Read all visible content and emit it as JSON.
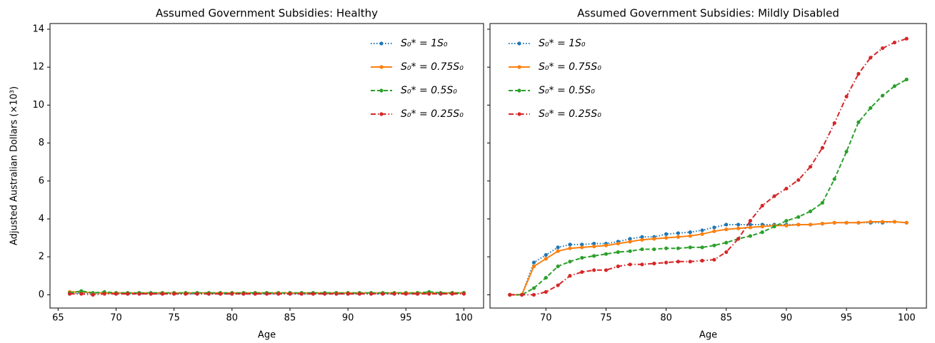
{
  "chart_data": [
    {
      "type": "line",
      "title": "Assumed Government Subsidies: Healthy",
      "xlabel": "Age",
      "ylabel": "Adjusted Australian Dollars (×10³)",
      "x": [
        66,
        67,
        68,
        69,
        70,
        71,
        72,
        73,
        74,
        75,
        76,
        77,
        78,
        79,
        80,
        81,
        82,
        83,
        84,
        85,
        86,
        87,
        88,
        89,
        90,
        91,
        92,
        93,
        94,
        95,
        96,
        97,
        98,
        99,
        100
      ],
      "xlim": [
        64.3,
        101.7
      ],
      "xticks": [
        65,
        70,
        75,
        80,
        85,
        90,
        95,
        100
      ],
      "ylim": [
        -0.7,
        14.3
      ],
      "yticks": [
        0,
        2,
        4,
        6,
        8,
        10,
        12,
        14
      ],
      "show_ytick_labels": true,
      "legend": "upper right",
      "series": [
        {
          "name": "S₀* =  1S₀",
          "color": "#1f77b4",
          "linestyle": "dotted",
          "values": [
            0.05,
            0.1,
            0.05,
            0.1,
            0.05,
            0.05,
            0.05,
            0.05,
            0.05,
            0.05,
            0.05,
            0.05,
            0.05,
            0.05,
            0.05,
            0.05,
            0.05,
            0.05,
            0.05,
            0.05,
            0.05,
            0.05,
            0.05,
            0.05,
            0.05,
            0.05,
            0.05,
            0.05,
            0.05,
            0.05,
            0.05,
            0.1,
            0.05,
            0.1,
            0.1
          ]
        },
        {
          "name": "S₀* =  0.75S₀",
          "color": "#ff7f0e",
          "linestyle": "solid",
          "values": [
            0.15,
            0.15,
            0.1,
            0.1,
            0.1,
            0.1,
            0.1,
            0.1,
            0.1,
            0.1,
            0.1,
            0.1,
            0.1,
            0.1,
            0.1,
            0.1,
            0.1,
            0.1,
            0.1,
            0.1,
            0.1,
            0.1,
            0.1,
            0.1,
            0.1,
            0.1,
            0.1,
            0.1,
            0.1,
            0.1,
            0.1,
            0.1,
            0.1,
            0.1,
            0.1
          ]
        },
        {
          "name": "S₀* =  0.5S₀",
          "color": "#2ca02c",
          "linestyle": "dashed",
          "values": [
            0.1,
            0.2,
            0.1,
            0.15,
            0.1,
            0.1,
            0.1,
            0.1,
            0.1,
            0.1,
            0.1,
            0.1,
            0.1,
            0.1,
            0.1,
            0.1,
            0.1,
            0.1,
            0.1,
            0.1,
            0.1,
            0.1,
            0.1,
            0.1,
            0.1,
            0.1,
            0.1,
            0.1,
            0.1,
            0.1,
            0.1,
            0.15,
            0.1,
            0.1,
            0.1
          ]
        },
        {
          "name": "S₀* =  0.25S₀",
          "color": "#d62728",
          "linestyle": "dashdot",
          "values": [
            0.05,
            0.05,
            0.0,
            0.05,
            0.05,
            0.05,
            0.05,
            0.05,
            0.05,
            0.05,
            0.05,
            0.05,
            0.05,
            0.05,
            0.05,
            0.05,
            0.05,
            0.05,
            0.05,
            0.05,
            0.05,
            0.05,
            0.05,
            0.05,
            0.05,
            0.05,
            0.05,
            0.05,
            0.05,
            0.05,
            0.05,
            0.05,
            0.05,
            0.05,
            0.05
          ]
        }
      ]
    },
    {
      "type": "line",
      "title": "Assumed Government Subsidies: Mildly Disabled",
      "xlabel": "Age",
      "x": [
        67,
        68,
        69,
        70,
        71,
        72,
        73,
        74,
        75,
        76,
        77,
        78,
        79,
        80,
        81,
        82,
        83,
        84,
        85,
        86,
        87,
        88,
        89,
        90,
        91,
        92,
        93,
        94,
        95,
        96,
        97,
        98,
        99,
        100
      ],
      "xlim": [
        65.35,
        101.65
      ],
      "xticks": [
        70,
        75,
        80,
        85,
        90,
        95,
        100
      ],
      "ylim": [
        -0.7,
        14.3
      ],
      "yticks": [
        0,
        2,
        4,
        6,
        8,
        10,
        12,
        14
      ],
      "show_ytick_labels": false,
      "legend": "upper left",
      "series": [
        {
          "name": "S₀* = 1S₀",
          "color": "#1f77b4",
          "linestyle": "dotted",
          "values": [
            0,
            0,
            1.7,
            2.1,
            2.5,
            2.65,
            2.65,
            2.7,
            2.7,
            2.8,
            2.95,
            3.05,
            3.05,
            3.2,
            3.25,
            3.3,
            3.4,
            3.55,
            3.7,
            3.7,
            3.7,
            3.7,
            3.7,
            3.7,
            3.7,
            3.7,
            3.75,
            3.8,
            3.8,
            3.8,
            3.8,
            3.8,
            3.85,
            3.8
          ]
        },
        {
          "name": "S₀* = 0.75S₀",
          "color": "#ff7f0e",
          "linestyle": "solid",
          "values": [
            0,
            0,
            1.5,
            1.9,
            2.3,
            2.45,
            2.5,
            2.55,
            2.6,
            2.7,
            2.8,
            2.9,
            2.95,
            3.0,
            3.05,
            3.1,
            3.2,
            3.35,
            3.45,
            3.5,
            3.55,
            3.6,
            3.65,
            3.65,
            3.7,
            3.7,
            3.75,
            3.8,
            3.8,
            3.8,
            3.85,
            3.85,
            3.85,
            3.8
          ]
        },
        {
          "name": "S₀* = 0.5S₀",
          "color": "#2ca02c",
          "linestyle": "dashed",
          "values": [
            0,
            0,
            0.35,
            0.9,
            1.5,
            1.75,
            1.95,
            2.05,
            2.15,
            2.25,
            2.3,
            2.4,
            2.4,
            2.45,
            2.45,
            2.5,
            2.5,
            2.6,
            2.75,
            2.95,
            3.1,
            3.3,
            3.6,
            3.9,
            4.1,
            4.4,
            4.85,
            6.1,
            7.55,
            9.1,
            9.85,
            10.5,
            11.0,
            11.35
          ]
        },
        {
          "name": "S₀* = 0.25S₀",
          "color": "#d62728",
          "linestyle": "dashdot",
          "values": [
            0,
            0,
            0,
            0.15,
            0.5,
            1.0,
            1.2,
            1.3,
            1.3,
            1.5,
            1.6,
            1.6,
            1.65,
            1.7,
            1.75,
            1.75,
            1.8,
            1.85,
            2.25,
            2.95,
            3.9,
            4.7,
            5.2,
            5.6,
            6.05,
            6.75,
            7.75,
            9.05,
            10.45,
            11.65,
            12.5,
            13.0,
            13.3,
            13.5
          ]
        }
      ]
    }
  ]
}
